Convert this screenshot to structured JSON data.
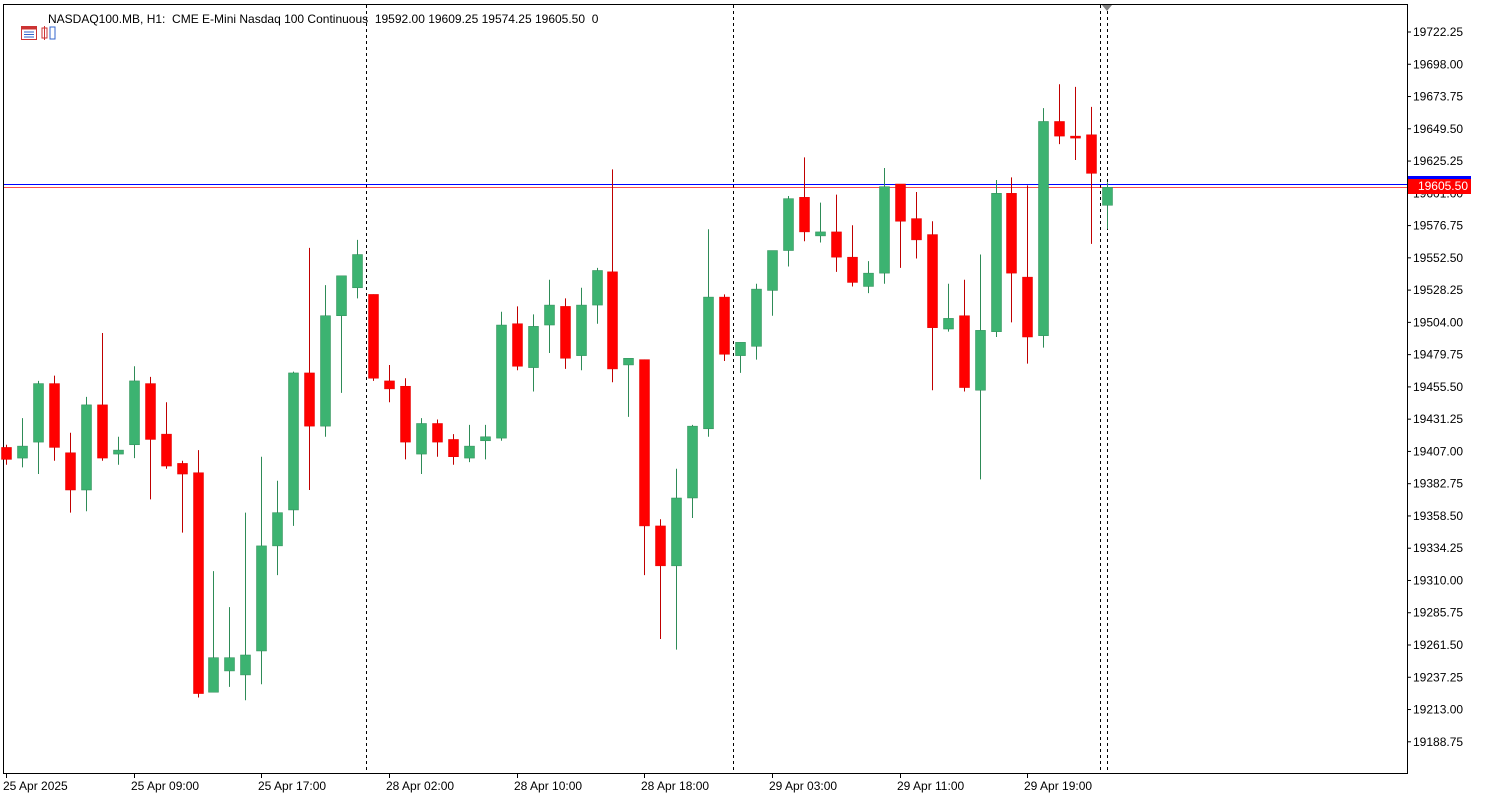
{
  "header": {
    "symbol": "NASDAQ100.MB, H1:",
    "description": "CME E-Mini Nasdaq 100 Continuous",
    "ohlc": "19592.00 19609.25 19574.25 19605.50",
    "volume": "0",
    "icons": [
      "chart-window-icon",
      "symbol-properties-icon"
    ]
  },
  "price_axis": {
    "labels": [
      "19722.25",
      "19698.00",
      "19673.75",
      "19649.50",
      "19625.25",
      "19601.00",
      "19576.75",
      "19552.50",
      "19528.25",
      "19504.00",
      "19479.75",
      "19455.50",
      "19431.25",
      "19407.00",
      "19382.75",
      "19358.50",
      "19334.25",
      "19310.00",
      "19285.75",
      "19261.50",
      "19237.25",
      "19213.00",
      "19188.75"
    ]
  },
  "time_axis": {
    "labels": [
      "25 Apr 2025",
      "25 Apr 09:00",
      "25 Apr 17:00",
      "28 Apr 02:00",
      "28 Apr 10:00",
      "28 Apr 18:00",
      "29 Apr 03:00",
      "29 Apr 11:00",
      "29 Apr 19:00"
    ]
  },
  "last_price_label": "19605.50",
  "colors": {
    "bull": "#3cb371",
    "bear": "#ff0000",
    "line_bid": "#0000ff",
    "line_ask": "#ff0000",
    "grid_sep": "#000000"
  },
  "chart_data": {
    "type": "candlestick",
    "timeframe": "H1",
    "ylim": [
      19170,
      19745
    ],
    "y_ticks": [
      19722.25,
      19698.0,
      19673.75,
      19649.5,
      19625.25,
      19601.0,
      19576.75,
      19552.5,
      19528.25,
      19504.0,
      19479.75,
      19455.5,
      19431.25,
      19407.0,
      19382.75,
      19358.5,
      19334.25,
      19310.0,
      19285.75,
      19261.5,
      19237.25,
      19213.0,
      19188.75
    ],
    "bid_price": 19605.5,
    "ask_price": 19608.0,
    "period_separators_after_index": [
      22,
      45,
      68
    ],
    "candles": [
      {
        "o": 19410,
        "h": 19412,
        "l": 19397,
        "c": 19401
      },
      {
        "o": 19402,
        "h": 19432,
        "l": 19395,
        "c": 19411
      },
      {
        "o": 19414,
        "h": 19460,
        "l": 19390,
        "c": 19458
      },
      {
        "o": 19458,
        "h": 19464,
        "l": 19400,
        "c": 19410
      },
      {
        "o": 19406,
        "h": 19421,
        "l": 19361,
        "c": 19378
      },
      {
        "o": 19378,
        "h": 19448,
        "l": 19362,
        "c": 19442
      },
      {
        "o": 19442,
        "h": 19496,
        "l": 19400,
        "c": 19402
      },
      {
        "o": 19405,
        "h": 19418,
        "l": 19397,
        "c": 19408
      },
      {
        "o": 19412,
        "h": 19471,
        "l": 19402,
        "c": 19460
      },
      {
        "o": 19458,
        "h": 19463,
        "l": 19371,
        "c": 19416
      },
      {
        "o": 19420,
        "h": 19444,
        "l": 19394,
        "c": 19396
      },
      {
        "o": 19398,
        "h": 19400,
        "l": 19346,
        "c": 19390
      },
      {
        "o": 19391,
        "h": 19408,
        "l": 19222,
        "c": 19225
      },
      {
        "o": 19226,
        "h": 19317,
        "l": 19226,
        "c": 19252
      },
      {
        "o": 19242,
        "h": 19290,
        "l": 19230,
        "c": 19252
      },
      {
        "o": 19239,
        "h": 19361,
        "l": 19220,
        "c": 19254
      },
      {
        "o": 19257,
        "h": 19403,
        "l": 19232,
        "c": 19336
      },
      {
        "o": 19336,
        "h": 19385,
        "l": 19314,
        "c": 19361
      },
      {
        "o": 19363,
        "h": 19467,
        "l": 19351,
        "c": 19466
      },
      {
        "o": 19466,
        "h": 19560,
        "l": 19378,
        "c": 19426
      },
      {
        "o": 19426,
        "h": 19532,
        "l": 19418,
        "c": 19509
      },
      {
        "o": 19509,
        "h": 19534,
        "l": 19451,
        "c": 19539
      },
      {
        "o": 19530,
        "h": 19566,
        "l": 19522,
        "c": 19555
      },
      {
        "o": 19525,
        "h": 19525,
        "l": 19460,
        "c": 19462
      },
      {
        "o": 19460,
        "h": 19472,
        "l": 19444,
        "c": 19454
      },
      {
        "o": 19456,
        "h": 19462,
        "l": 19401,
        "c": 19414
      },
      {
        "o": 19405,
        "h": 19432,
        "l": 19390,
        "c": 19428
      },
      {
        "o": 19428,
        "h": 19431,
        "l": 19403,
        "c": 19414
      },
      {
        "o": 19416,
        "h": 19420,
        "l": 19397,
        "c": 19403
      },
      {
        "o": 19402,
        "h": 19427,
        "l": 19399,
        "c": 19411
      },
      {
        "o": 19415,
        "h": 19427,
        "l": 19401,
        "c": 19418
      },
      {
        "o": 19417,
        "h": 19512,
        "l": 19415,
        "c": 19502
      },
      {
        "o": 19503,
        "h": 19516,
        "l": 19468,
        "c": 19471
      },
      {
        "o": 19470,
        "h": 19510,
        "l": 19452,
        "c": 19501
      },
      {
        "o": 19502,
        "h": 19536,
        "l": 19481,
        "c": 19517
      },
      {
        "o": 19516,
        "h": 19522,
        "l": 19469,
        "c": 19477
      },
      {
        "o": 19479,
        "h": 19530,
        "l": 19468,
        "c": 19517
      },
      {
        "o": 19517,
        "h": 19545,
        "l": 19503,
        "c": 19543
      },
      {
        "o": 19542,
        "h": 19619,
        "l": 19459,
        "c": 19469
      },
      {
        "o": 19472,
        "h": 19475,
        "l": 19433,
        "c": 19477
      },
      {
        "o": 19476,
        "h": 19476,
        "l": 19314,
        "c": 19351
      },
      {
        "o": 19351,
        "h": 19356,
        "l": 19266,
        "c": 19321
      },
      {
        "o": 19321,
        "h": 19394,
        "l": 19258,
        "c": 19372
      },
      {
        "o": 19372,
        "h": 19427,
        "l": 19357,
        "c": 19426
      },
      {
        "o": 19424,
        "h": 19574,
        "l": 19418,
        "c": 19523
      },
      {
        "o": 19523,
        "h": 19525,
        "l": 19475,
        "c": 19480
      },
      {
        "o": 19479,
        "h": 19489,
        "l": 19466,
        "c": 19489
      },
      {
        "o": 19486,
        "h": 19533,
        "l": 19476,
        "c": 19529
      },
      {
        "o": 19528,
        "h": 19557,
        "l": 19509,
        "c": 19558
      },
      {
        "o": 19558,
        "h": 19599,
        "l": 19546,
        "c": 19597
      },
      {
        "o": 19598,
        "h": 19628,
        "l": 19565,
        "c": 19572
      },
      {
        "o": 19569,
        "h": 19594,
        "l": 19564,
        "c": 19572
      },
      {
        "o": 19572,
        "h": 19600,
        "l": 19542,
        "c": 19553
      },
      {
        "o": 19553,
        "h": 19577,
        "l": 19531,
        "c": 19534
      },
      {
        "o": 19531,
        "h": 19550,
        "l": 19526,
        "c": 19541
      },
      {
        "o": 19541,
        "h": 19620,
        "l": 19533,
        "c": 19606
      },
      {
        "o": 19608,
        "h": 19608,
        "l": 19545,
        "c": 19580
      },
      {
        "o": 19582,
        "h": 19602,
        "l": 19552,
        "c": 19566
      },
      {
        "o": 19570,
        "h": 19580,
        "l": 19453,
        "c": 19500
      },
      {
        "o": 19499,
        "h": 19533,
        "l": 19497,
        "c": 19507
      },
      {
        "o": 19509,
        "h": 19536,
        "l": 19452,
        "c": 19455
      },
      {
        "o": 19453,
        "h": 19555,
        "l": 19386,
        "c": 19498
      },
      {
        "o": 19497,
        "h": 19611,
        "l": 19493,
        "c": 19601
      },
      {
        "o": 19601,
        "h": 19613,
        "l": 19504,
        "c": 19541
      },
      {
        "o": 19538,
        "h": 19607,
        "l": 19473,
        "c": 19493
      },
      {
        "o": 19494,
        "h": 19665,
        "l": 19485,
        "c": 19655
      },
      {
        "o": 19655,
        "h": 19683,
        "l": 19638,
        "c": 19644
      },
      {
        "o": 19644,
        "h": 19681,
        "l": 19626,
        "c": 19643
      },
      {
        "o": 19645,
        "h": 19666,
        "l": 19563,
        "c": 19616
      },
      {
        "o": 19592,
        "h": 19609.25,
        "l": 19574.25,
        "c": 19605.5
      }
    ]
  }
}
